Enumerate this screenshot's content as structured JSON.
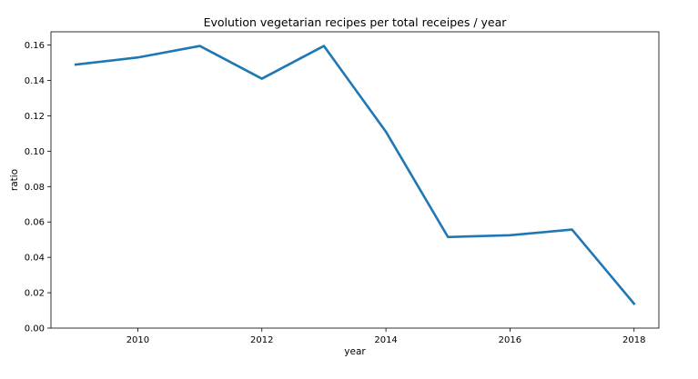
{
  "chart_data": {
    "type": "line",
    "title": "Evolution vegetarian recipes per total receipes / year",
    "xlabel": "year",
    "ylabel": "ratio",
    "xlim": [
      2008.6,
      2018.4
    ],
    "ylim": [
      0.0,
      0.1675
    ],
    "xticks": [
      2010,
      2012,
      2014,
      2016,
      2018
    ],
    "xtick_labels": [
      "2010",
      "2012",
      "2014",
      "2016",
      "2018"
    ],
    "yticks": [
      0.0,
      0.02,
      0.04,
      0.06,
      0.08,
      0.1,
      0.12,
      0.14,
      0.16
    ],
    "ytick_labels": [
      "0.00",
      "0.02",
      "0.04",
      "0.06",
      "0.08",
      "0.10",
      "0.12",
      "0.14",
      "0.16"
    ],
    "grid": false,
    "legend": "none",
    "x": [
      2009,
      2010,
      2011,
      2012,
      2013,
      2014,
      2015,
      2016,
      2017,
      2018
    ],
    "series": [
      {
        "color": "#1f77b4",
        "values": [
          0.149,
          0.153,
          0.1595,
          0.141,
          0.1595,
          0.111,
          0.0515,
          0.0525,
          0.0557,
          0.0138
        ]
      }
    ]
  }
}
